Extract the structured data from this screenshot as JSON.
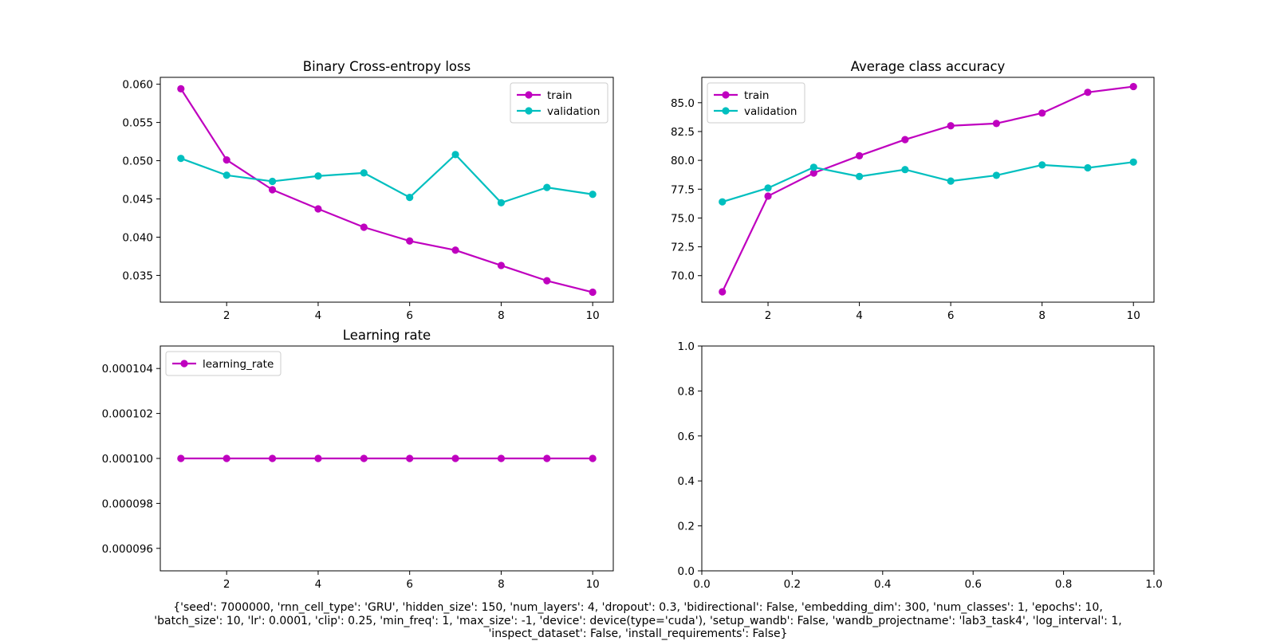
{
  "chart_data": [
    {
      "type": "line",
      "title": "Binary Cross-entropy loss",
      "x": [
        1,
        2,
        3,
        4,
        5,
        6,
        7,
        8,
        9,
        10
      ],
      "series": [
        {
          "name": "train",
          "color": "#bf00bf",
          "values": [
            0.0594,
            0.0501,
            0.0462,
            0.0437,
            0.0413,
            0.0395,
            0.0383,
            0.0363,
            0.0343,
            0.0328
          ]
        },
        {
          "name": "validation",
          "color": "#00bfbf",
          "values": [
            0.0503,
            0.0481,
            0.0473,
            0.048,
            0.0484,
            0.0452,
            0.0508,
            0.0445,
            0.0465,
            0.0456
          ]
        }
      ],
      "xlim": [
        0.55,
        10.45
      ],
      "ylim": [
        0.0315,
        0.0609
      ],
      "xticks": [
        2,
        4,
        6,
        8,
        10
      ],
      "xticklabels": [
        "2",
        "4",
        "6",
        "8",
        "10"
      ],
      "yticks": [
        0.035,
        0.04,
        0.045,
        0.05,
        0.055,
        0.06
      ],
      "yticklabels": [
        "0.035",
        "0.040",
        "0.045",
        "0.050",
        "0.055",
        "0.060"
      ],
      "legend": "upper right",
      "grid": false
    },
    {
      "type": "line",
      "title": "Average class accuracy",
      "x": [
        1,
        2,
        3,
        4,
        5,
        6,
        7,
        8,
        9,
        10
      ],
      "series": [
        {
          "name": "train",
          "color": "#bf00bf",
          "values": [
            68.6,
            76.9,
            78.9,
            80.4,
            81.8,
            83.0,
            83.2,
            84.1,
            85.9,
            86.4
          ]
        },
        {
          "name": "validation",
          "color": "#00bfbf",
          "values": [
            76.4,
            77.6,
            79.4,
            78.6,
            79.2,
            78.2,
            78.7,
            79.6,
            79.35,
            79.85
          ]
        }
      ],
      "xlim": [
        0.55,
        10.45
      ],
      "ylim": [
        67.7,
        87.2
      ],
      "xticks": [
        2,
        4,
        6,
        8,
        10
      ],
      "xticklabels": [
        "2",
        "4",
        "6",
        "8",
        "10"
      ],
      "yticks": [
        70.0,
        72.5,
        75.0,
        77.5,
        80.0,
        82.5,
        85.0
      ],
      "yticklabels": [
        "70.0",
        "72.5",
        "75.0",
        "77.5",
        "80.0",
        "82.5",
        "85.0"
      ],
      "legend": "upper left",
      "grid": false
    },
    {
      "type": "line",
      "title": "Learning rate",
      "x": [
        1,
        2,
        3,
        4,
        5,
        6,
        7,
        8,
        9,
        10
      ],
      "series": [
        {
          "name": "learning_rate",
          "color": "#bf00bf",
          "values": [
            0.0001,
            0.0001,
            0.0001,
            0.0001,
            0.0001,
            0.0001,
            0.0001,
            0.0001,
            0.0001,
            0.0001
          ]
        }
      ],
      "xlim": [
        0.55,
        10.45
      ],
      "ylim": [
        9.5e-05,
        0.000105
      ],
      "xticks": [
        2,
        4,
        6,
        8,
        10
      ],
      "xticklabels": [
        "2",
        "4",
        "6",
        "8",
        "10"
      ],
      "yticks": [
        9.6e-05,
        9.8e-05,
        0.0001,
        0.000102,
        0.000104
      ],
      "yticklabels": [
        "0.000096",
        "0.000098",
        "0.000100",
        "0.000102",
        "0.000104"
      ],
      "legend": "upper left",
      "grid": false
    },
    {
      "type": "line",
      "title": "",
      "x": [],
      "series": [],
      "xlim": [
        0.0,
        1.0
      ],
      "ylim": [
        0.0,
        1.0
      ],
      "xticks": [
        0.0,
        0.2,
        0.4,
        0.6,
        0.8,
        1.0
      ],
      "xticklabels": [
        "0.0",
        "0.2",
        "0.4",
        "0.6",
        "0.8",
        "1.0"
      ],
      "yticks": [
        0.0,
        0.2,
        0.4,
        0.6,
        0.8,
        1.0
      ],
      "yticklabels": [
        "0.0",
        "0.2",
        "0.4",
        "0.6",
        "0.8",
        "1.0"
      ],
      "legend": "none",
      "grid": false
    }
  ],
  "caption_lines": [
    "{'seed': 7000000, 'rnn_cell_type': 'GRU', 'hidden_size': 150, 'num_layers': 4, 'dropout': 0.3, 'bidirectional': False, 'embedding_dim': 300, 'num_classes': 1, 'epochs': 10,",
    "'batch_size': 10, 'lr': 0.0001, 'clip': 0.25, 'min_freq': 1, 'max_size': -1, 'device': device(type='cuda'), 'setup_wandb': False, 'wandb_projectname': 'lab3_task4', 'log_interval': 1,",
    "'inspect_dataset': False, 'install_requirements': False}"
  ]
}
